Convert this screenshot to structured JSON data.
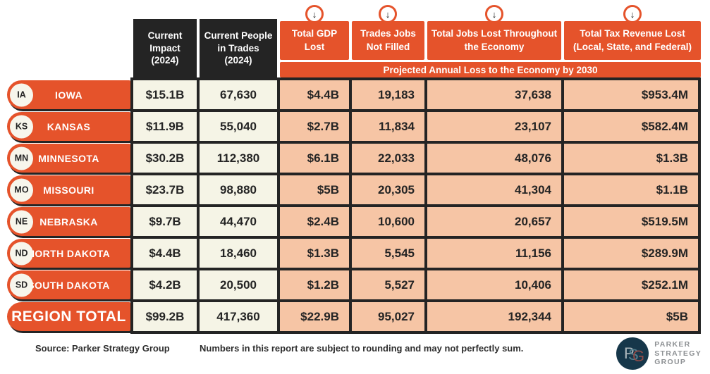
{
  "header": {
    "impact_label": "Current Impact (2024)",
    "people_label": "Current People in Trades (2024)",
    "gdp_label": "Total GDP Lost",
    "not_filled_label": "Trades Jobs Not Filled",
    "jobs_lost_label": "Total Jobs Lost Throughout the Economy",
    "tax_label": "Total Tax Revenue Lost (Local, State, and Federal)",
    "band_label": "Projected Annual Loss to the Economy by 2030",
    "arrow_icon": "↓"
  },
  "table": {
    "rows": [
      {
        "abbr": "IA",
        "state": "IOWA",
        "impact": "$15.1B",
        "people": "67,630",
        "gdp": "$4.4B",
        "not_filled": "19,183",
        "jobs_lost": "37,638",
        "tax": "$953.4M"
      },
      {
        "abbr": "KS",
        "state": "KANSAS",
        "impact": "$11.9B",
        "people": "55,040",
        "gdp": "$2.7B",
        "not_filled": "11,834",
        "jobs_lost": "23,107",
        "tax": "$582.4M"
      },
      {
        "abbr": "MN",
        "state": "MINNESOTA",
        "impact": "$30.2B",
        "people": "112,380",
        "gdp": "$6.1B",
        "not_filled": "22,033",
        "jobs_lost": "48,076",
        "tax": "$1.3B"
      },
      {
        "abbr": "MO",
        "state": "MISSOURI",
        "impact": "$23.7B",
        "people": "98,880",
        "gdp": "$5B",
        "not_filled": "20,305",
        "jobs_lost": "41,304",
        "tax": "$1.1B"
      },
      {
        "abbr": "NE",
        "state": "NEBRASKA",
        "impact": "$9.7B",
        "people": "44,470",
        "gdp": "$2.4B",
        "not_filled": "10,600",
        "jobs_lost": "20,657",
        "tax": "$519.5M"
      },
      {
        "abbr": "ND",
        "state": "NORTH DAKOTA",
        "impact": "$4.4B",
        "people": "18,460",
        "gdp": "$1.3B",
        "not_filled": "5,545",
        "jobs_lost": "11,156",
        "tax": "$289.9M"
      },
      {
        "abbr": "SD",
        "state": "SOUTH DAKOTA",
        "impact": "$4.2B",
        "people": "20,500",
        "gdp": "$1.2B",
        "not_filled": "5,527",
        "jobs_lost": "10,406",
        "tax": "$252.1M"
      }
    ],
    "total": {
      "label": "REGION TOTAL",
      "impact": "$99.2B",
      "people": "417,360",
      "gdp": "$22.9B",
      "not_filled": "95,027",
      "jobs_lost": "192,344",
      "tax": "$5B"
    }
  },
  "footer": {
    "source": "Source: Parker Strategy Group",
    "note": "Numbers in this report are subject to rounding and may not perfectly sum.",
    "logo": {
      "line1": "PARKER",
      "line2": "STRATEGY",
      "line3": "GROUP",
      "monogram": "PSG"
    }
  },
  "colors": {
    "orange": "#E5532B",
    "peach": "#F6C5A5",
    "cream": "#F5F4E6",
    "dark": "#242424",
    "logo_navy": "#16374A",
    "logo_gray": "#8E9194"
  },
  "chart_data": {
    "type": "table",
    "title": "Projected Annual Loss to the Economy by 2030",
    "columns": [
      "State",
      "Current Impact (2024)",
      "Current People in Trades (2024)",
      "Total GDP Lost",
      "Trades Jobs Not Filled",
      "Total Jobs Lost Throughout the Economy",
      "Total Tax Revenue Lost (Local, State, and Federal)"
    ],
    "rows": [
      [
        "IOWA",
        "$15.1B",
        "67,630",
        "$4.4B",
        "19,183",
        "37,638",
        "$953.4M"
      ],
      [
        "KANSAS",
        "$11.9B",
        "55,040",
        "$2.7B",
        "11,834",
        "23,107",
        "$582.4M"
      ],
      [
        "MINNESOTA",
        "$30.2B",
        "112,380",
        "$6.1B",
        "22,033",
        "48,076",
        "$1.3B"
      ],
      [
        "MISSOURI",
        "$23.7B",
        "98,880",
        "$5B",
        "20,305",
        "41,304",
        "$1.1B"
      ],
      [
        "NEBRASKA",
        "$9.7B",
        "44,470",
        "$2.4B",
        "10,600",
        "20,657",
        "$519.5M"
      ],
      [
        "NORTH DAKOTA",
        "$4.4B",
        "18,460",
        "$1.3B",
        "5,545",
        "11,156",
        "$289.9M"
      ],
      [
        "SOUTH DAKOTA",
        "$4.2B",
        "20,500",
        "$1.2B",
        "5,527",
        "10,406",
        "$252.1M"
      ],
      [
        "REGION TOTAL",
        "$99.2B",
        "417,360",
        "$22.9B",
        "95,027",
        "192,344",
        "$5B"
      ]
    ]
  }
}
